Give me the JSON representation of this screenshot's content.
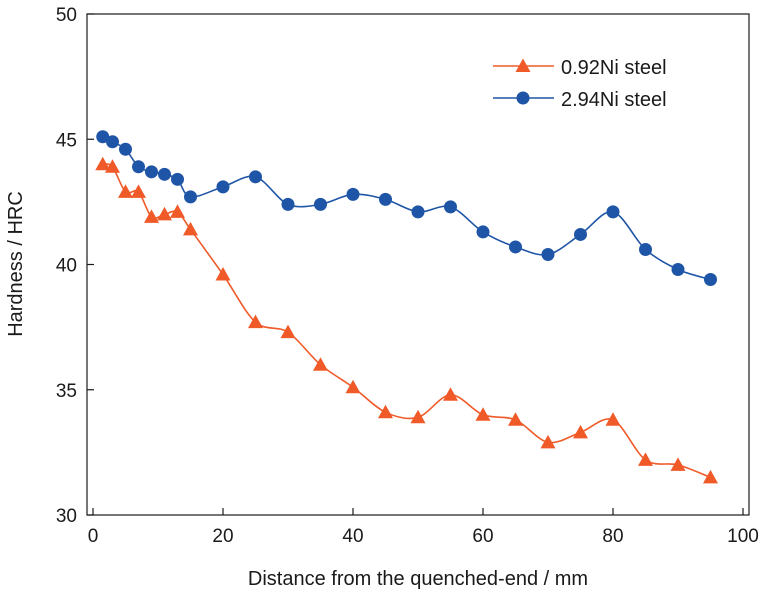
{
  "chart_data": {
    "type": "line",
    "title": "",
    "xlabel": "Distance from the quenched-end / mm",
    "ylabel": "Hardness / HRC",
    "xlim": [
      0,
      100
    ],
    "ylim": [
      30,
      50
    ],
    "xticks": [
      "0",
      "20",
      "40",
      "60",
      "80",
      "100"
    ],
    "yticks": [
      "30",
      "35",
      "40",
      "45",
      "50"
    ],
    "grid": false,
    "legend_position": "top-right",
    "series": [
      {
        "name": "0.92Ni steel",
        "color": "#f05a28",
        "marker": "triangle",
        "x": [
          1.5,
          3,
          5,
          7,
          9,
          11,
          13,
          15,
          20,
          25,
          30,
          35,
          40,
          45,
          50,
          55,
          60,
          65,
          70,
          75,
          80,
          85,
          90,
          95
        ],
        "y": [
          44.0,
          43.9,
          42.9,
          42.9,
          41.9,
          42.0,
          42.1,
          41.4,
          39.6,
          37.7,
          37.3,
          36.0,
          35.1,
          34.1,
          33.9,
          34.8,
          34.0,
          33.8,
          32.9,
          33.3,
          33.8,
          32.2,
          32.0,
          31.5
        ]
      },
      {
        "name": "2.94Ni steel",
        "color": "#1f55a6",
        "marker": "circle",
        "x": [
          1.5,
          3,
          5,
          7,
          9,
          11,
          13,
          15,
          20,
          25,
          30,
          35,
          40,
          45,
          50,
          55,
          60,
          65,
          70,
          75,
          80,
          85,
          90,
          95
        ],
        "y": [
          45.1,
          44.9,
          44.6,
          43.9,
          43.7,
          43.6,
          43.4,
          42.7,
          43.1,
          43.5,
          42.4,
          42.4,
          42.8,
          42.6,
          42.1,
          42.3,
          41.3,
          40.7,
          40.4,
          41.2,
          42.1,
          40.6,
          39.8,
          39.4
        ]
      }
    ]
  }
}
